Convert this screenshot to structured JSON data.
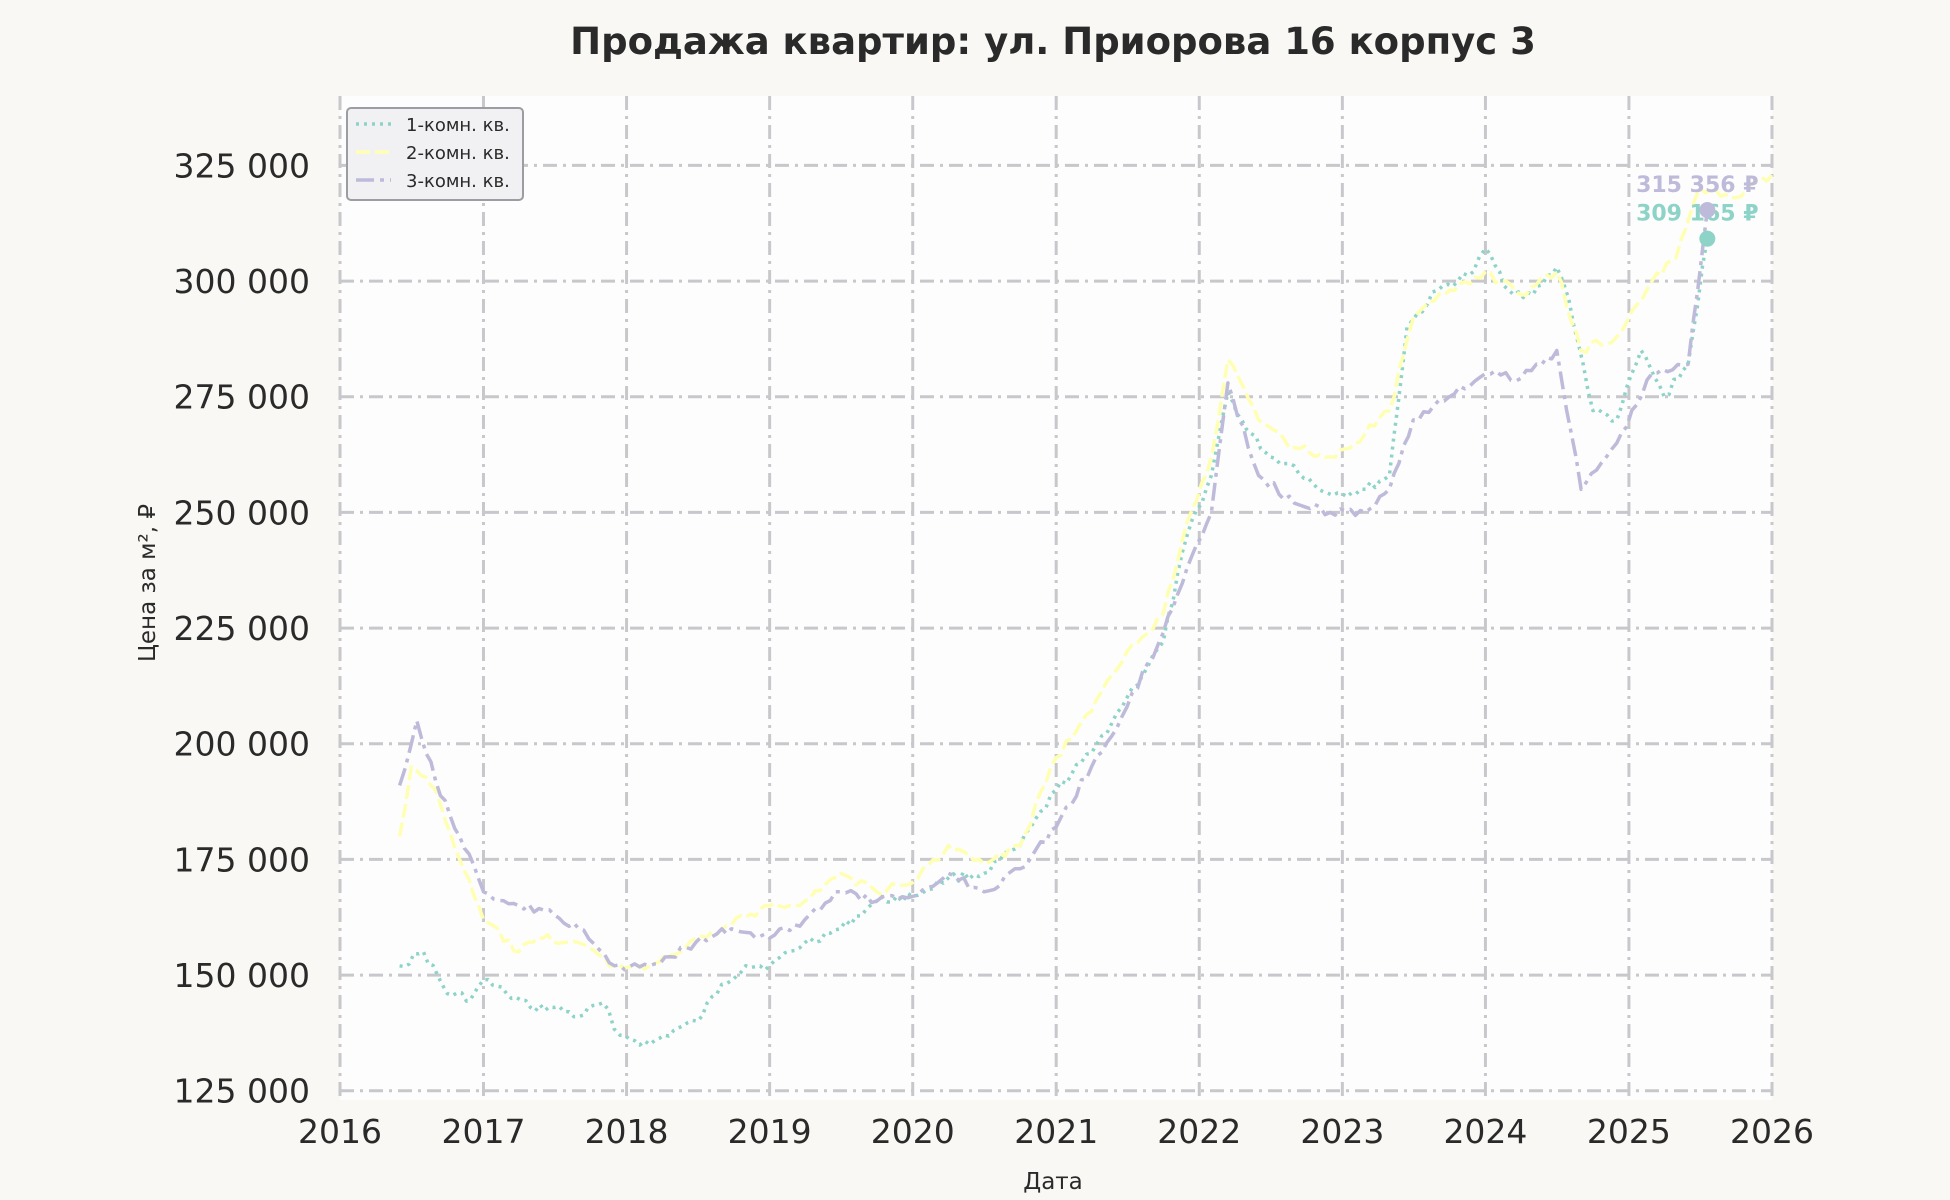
{
  "chart_data": {
    "type": "line",
    "title": "Продажа квартир: ул. Приорова 16 корпус 3",
    "xlabel": "Дата",
    "ylabel": "Цена за м², ₽",
    "xlim": [
      "2016-01-01",
      "2026-01-01"
    ],
    "ylim": [
      123000,
      340000
    ],
    "x_ticks": [
      "2016",
      "2017",
      "2018",
      "2019",
      "2020",
      "2021",
      "2022",
      "2023",
      "2024",
      "2025",
      "2026"
    ],
    "y_ticks": [
      125000,
      150000,
      175000,
      200000,
      225000,
      250000,
      275000,
      300000,
      325000
    ],
    "y_tick_labels": [
      "125 000",
      "150 000",
      "175 000",
      "200 000",
      "225 000",
      "250 000",
      "275 000",
      "300 000",
      "325 000"
    ],
    "grid": true,
    "legend_position": "top-left",
    "background_color": "#f9f8f4",
    "plot_background_color": "#fdfdfd",
    "series": [
      {
        "name": "1-комн. кв.",
        "color": "#8dd3c7",
        "style": "dotted",
        "end_label": "309 165 ₽",
        "points": [
          [
            "2016-06-01",
            152000
          ],
          [
            "2016-08-01",
            155000
          ],
          [
            "2016-10-01",
            146000
          ],
          [
            "2016-12-01",
            145000
          ],
          [
            "2017-01-01",
            149000
          ],
          [
            "2017-03-01",
            146000
          ],
          [
            "2017-05-01",
            143000
          ],
          [
            "2017-07-01",
            143000
          ],
          [
            "2017-09-01",
            141000
          ],
          [
            "2017-11-01",
            144000
          ],
          [
            "2017-12-15",
            137000
          ],
          [
            "2018-03-01",
            135000
          ],
          [
            "2018-05-01",
            138000
          ],
          [
            "2018-07-01",
            140000
          ],
          [
            "2018-09-01",
            148000
          ],
          [
            "2018-11-01",
            152000
          ],
          [
            "2019-01-01",
            152000
          ],
          [
            "2019-04-01",
            157000
          ],
          [
            "2019-07-01",
            160000
          ],
          [
            "2019-10-01",
            166000
          ],
          [
            "2020-01-01",
            167000
          ],
          [
            "2020-04-01",
            171000
          ],
          [
            "2020-07-01",
            172000
          ],
          [
            "2020-10-01",
            178000
          ],
          [
            "2021-01-01",
            190000
          ],
          [
            "2021-04-01",
            198000
          ],
          [
            "2021-07-01",
            210000
          ],
          [
            "2021-10-01",
            222000
          ],
          [
            "2021-12-01",
            245000
          ],
          [
            "2022-02-01",
            258000
          ],
          [
            "2022-03-15",
            276000
          ],
          [
            "2022-05-01",
            268000
          ],
          [
            "2022-07-01",
            262000
          ],
          [
            "2022-09-01",
            260000
          ],
          [
            "2022-11-01",
            255000
          ],
          [
            "2023-01-01",
            254000
          ],
          [
            "2023-03-01",
            255000
          ],
          [
            "2023-05-01",
            258000
          ],
          [
            "2023-06-15",
            290000
          ],
          [
            "2023-09-01",
            298000
          ],
          [
            "2023-12-01",
            302000
          ],
          [
            "2024-01-01",
            307000
          ],
          [
            "2024-03-01",
            298000
          ],
          [
            "2024-05-01",
            297000
          ],
          [
            "2024-07-01",
            303000
          ],
          [
            "2024-08-01",
            296000
          ],
          [
            "2024-10-01",
            272000
          ],
          [
            "2024-12-01",
            270000
          ],
          [
            "2025-02-01",
            285000
          ],
          [
            "2025-04-01",
            275000
          ],
          [
            "2025-06-01",
            282000
          ],
          [
            "2025-07-20",
            309165
          ]
        ]
      },
      {
        "name": "2-комн. кв.",
        "color": "#ffffb3",
        "style": "dashed",
        "end_label": "",
        "points": [
          [
            "2016-06-01",
            180000
          ],
          [
            "2016-07-01",
            195000
          ],
          [
            "2016-09-01",
            190000
          ],
          [
            "2016-11-01",
            175000
          ],
          [
            "2017-01-01",
            162000
          ],
          [
            "2017-04-01",
            155000
          ],
          [
            "2017-06-01",
            158000
          ],
          [
            "2017-09-01",
            157000
          ],
          [
            "2017-12-01",
            152000
          ],
          [
            "2018-03-01",
            152000
          ],
          [
            "2018-06-01",
            156000
          ],
          [
            "2018-09-01",
            160000
          ],
          [
            "2019-01-01",
            165000
          ],
          [
            "2019-04-01",
            166000
          ],
          [
            "2019-07-01",
            172000
          ],
          [
            "2019-10-01",
            168000
          ],
          [
            "2020-01-01",
            170000
          ],
          [
            "2020-04-01",
            178000
          ],
          [
            "2020-07-01",
            174000
          ],
          [
            "2020-10-01",
            178000
          ],
          [
            "2021-01-01",
            197000
          ],
          [
            "2021-04-01",
            207000
          ],
          [
            "2021-07-01",
            220000
          ],
          [
            "2021-10-01",
            228000
          ],
          [
            "2021-12-01",
            248000
          ],
          [
            "2022-02-01",
            262000
          ],
          [
            "2022-03-15",
            283000
          ],
          [
            "2022-06-01",
            270000
          ],
          [
            "2022-09-01",
            264000
          ],
          [
            "2022-12-01",
            262000
          ],
          [
            "2023-02-01",
            265000
          ],
          [
            "2023-05-01",
            272000
          ],
          [
            "2023-07-01",
            292000
          ],
          [
            "2023-10-01",
            298000
          ],
          [
            "2024-01-01",
            302000
          ],
          [
            "2024-04-01",
            297000
          ],
          [
            "2024-07-01",
            302000
          ],
          [
            "2024-09-01",
            285000
          ],
          [
            "2024-12-01",
            288000
          ],
          [
            "2025-03-01",
            300000
          ],
          [
            "2025-05-01",
            305000
          ],
          [
            "2025-07-01",
            320000
          ],
          [
            "2025-10-01",
            318000
          ],
          [
            "2026-01-01",
            323000
          ]
        ]
      },
      {
        "name": "3-комн. кв.",
        "color": "#bebada",
        "style": "dashdot",
        "end_label": "315 356 ₽",
        "points": [
          [
            "2016-06-01",
            191000
          ],
          [
            "2016-07-15",
            205000
          ],
          [
            "2016-09-01",
            192000
          ],
          [
            "2016-11-01",
            180000
          ],
          [
            "2017-01-01",
            168000
          ],
          [
            "2017-04-01",
            165000
          ],
          [
            "2017-07-01",
            163000
          ],
          [
            "2017-09-01",
            160000
          ],
          [
            "2017-12-01",
            152000
          ],
          [
            "2018-03-01",
            152000
          ],
          [
            "2018-06-01",
            156000
          ],
          [
            "2018-09-01",
            160000
          ],
          [
            "2019-01-01",
            158000
          ],
          [
            "2019-04-01",
            162000
          ],
          [
            "2019-07-01",
            168000
          ],
          [
            "2019-10-01",
            166000
          ],
          [
            "2020-01-01",
            167000
          ],
          [
            "2020-04-01",
            172000
          ],
          [
            "2020-07-01",
            168000
          ],
          [
            "2020-10-01",
            173000
          ],
          [
            "2021-01-01",
            182000
          ],
          [
            "2021-04-01",
            195000
          ],
          [
            "2021-07-01",
            208000
          ],
          [
            "2021-10-01",
            224000
          ],
          [
            "2021-12-01",
            238000
          ],
          [
            "2022-02-01",
            250000
          ],
          [
            "2022-03-15",
            278000
          ],
          [
            "2022-06-01",
            258000
          ],
          [
            "2022-09-01",
            252000
          ],
          [
            "2022-12-01",
            250000
          ],
          [
            "2023-03-01",
            250000
          ],
          [
            "2023-05-01",
            255000
          ],
          [
            "2023-07-01",
            270000
          ],
          [
            "2023-10-01",
            275000
          ],
          [
            "2024-01-01",
            280000
          ],
          [
            "2024-04-01",
            279000
          ],
          [
            "2024-07-01",
            285000
          ],
          [
            "2024-09-01",
            255000
          ],
          [
            "2024-12-01",
            265000
          ],
          [
            "2025-03-01",
            280000
          ],
          [
            "2025-06-01",
            282000
          ],
          [
            "2025-07-20",
            315356
          ]
        ]
      }
    ]
  }
}
